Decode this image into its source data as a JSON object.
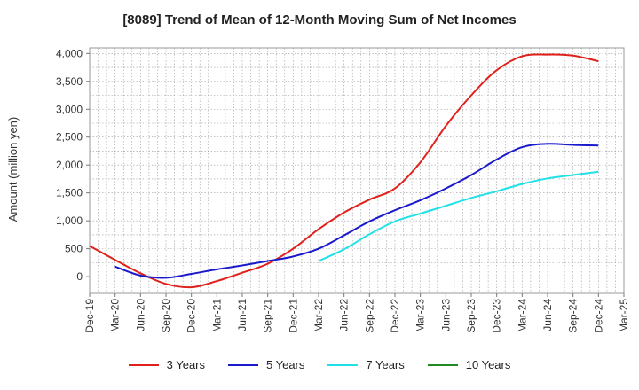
{
  "chart_data": {
    "type": "line",
    "title": "[8089]  Trend of Mean of 12-Month Moving Sum of Net Incomes",
    "xlabel": "",
    "ylabel": "Amount (million yen)",
    "ylim": [
      -300,
      4100
    ],
    "yticks": [
      0,
      500,
      1000,
      1500,
      2000,
      2500,
      3000,
      3500,
      4000
    ],
    "ytick_labels": [
      "0",
      "500",
      "1,000",
      "1,500",
      "2,000",
      "2,500",
      "3,000",
      "3,500",
      "4,000"
    ],
    "xticks": [
      "Dec-19",
      "Mar-20",
      "Jun-20",
      "Sep-20",
      "Dec-20",
      "Mar-21",
      "Jun-21",
      "Sep-21",
      "Dec-21",
      "Mar-22",
      "Jun-22",
      "Sep-22",
      "Dec-22",
      "Mar-23",
      "Jun-23",
      "Sep-23",
      "Dec-23",
      "Mar-24",
      "Jun-24",
      "Sep-24",
      "Dec-24",
      "Mar-25"
    ],
    "grid": true,
    "legend_position": "bottom",
    "series": [
      {
        "name": "3 Years",
        "color": "#e0201a",
        "x": [
          "Dec-19",
          "Mar-20",
          "Jun-20",
          "Sep-20",
          "Dec-20",
          "Mar-21",
          "Jun-21",
          "Sep-21",
          "Dec-21",
          "Mar-22",
          "Jun-22",
          "Sep-22",
          "Dec-22",
          "Mar-23",
          "Jun-23",
          "Sep-23",
          "Dec-23",
          "Mar-24",
          "Jun-24",
          "Sep-24",
          "Dec-24"
        ],
        "values": [
          550,
          300,
          60,
          -130,
          -190,
          -80,
          70,
          230,
          500,
          850,
          1150,
          1380,
          1580,
          2050,
          2700,
          3250,
          3700,
          3950,
          3980,
          3960,
          3860
        ]
      },
      {
        "name": "5 Years",
        "color": "#1a1acc",
        "x": [
          "Mar-20",
          "Jun-20",
          "Sep-20",
          "Dec-20",
          "Mar-21",
          "Jun-21",
          "Sep-21",
          "Dec-21",
          "Mar-22",
          "Jun-22",
          "Sep-22",
          "Dec-22",
          "Mar-23",
          "Jun-23",
          "Sep-23",
          "Dec-23",
          "Mar-24",
          "Jun-24",
          "Sep-24",
          "Dec-24"
        ],
        "values": [
          180,
          20,
          -20,
          50,
          130,
          200,
          280,
          360,
          500,
          740,
          990,
          1190,
          1370,
          1580,
          1820,
          2100,
          2320,
          2380,
          2360,
          2350
        ]
      },
      {
        "name": "7 Years",
        "color": "#20e0e8",
        "x": [
          "Mar-22",
          "Jun-22",
          "Sep-22",
          "Dec-22",
          "Mar-23",
          "Jun-23",
          "Sep-23",
          "Dec-23",
          "Mar-24",
          "Jun-24",
          "Sep-24",
          "Dec-24"
        ],
        "values": [
          280,
          490,
          760,
          990,
          1130,
          1270,
          1410,
          1530,
          1660,
          1760,
          1820,
          1880
        ]
      },
      {
        "name": "10 Years",
        "color": "#1f8a1f",
        "x": [],
        "values": []
      }
    ]
  }
}
